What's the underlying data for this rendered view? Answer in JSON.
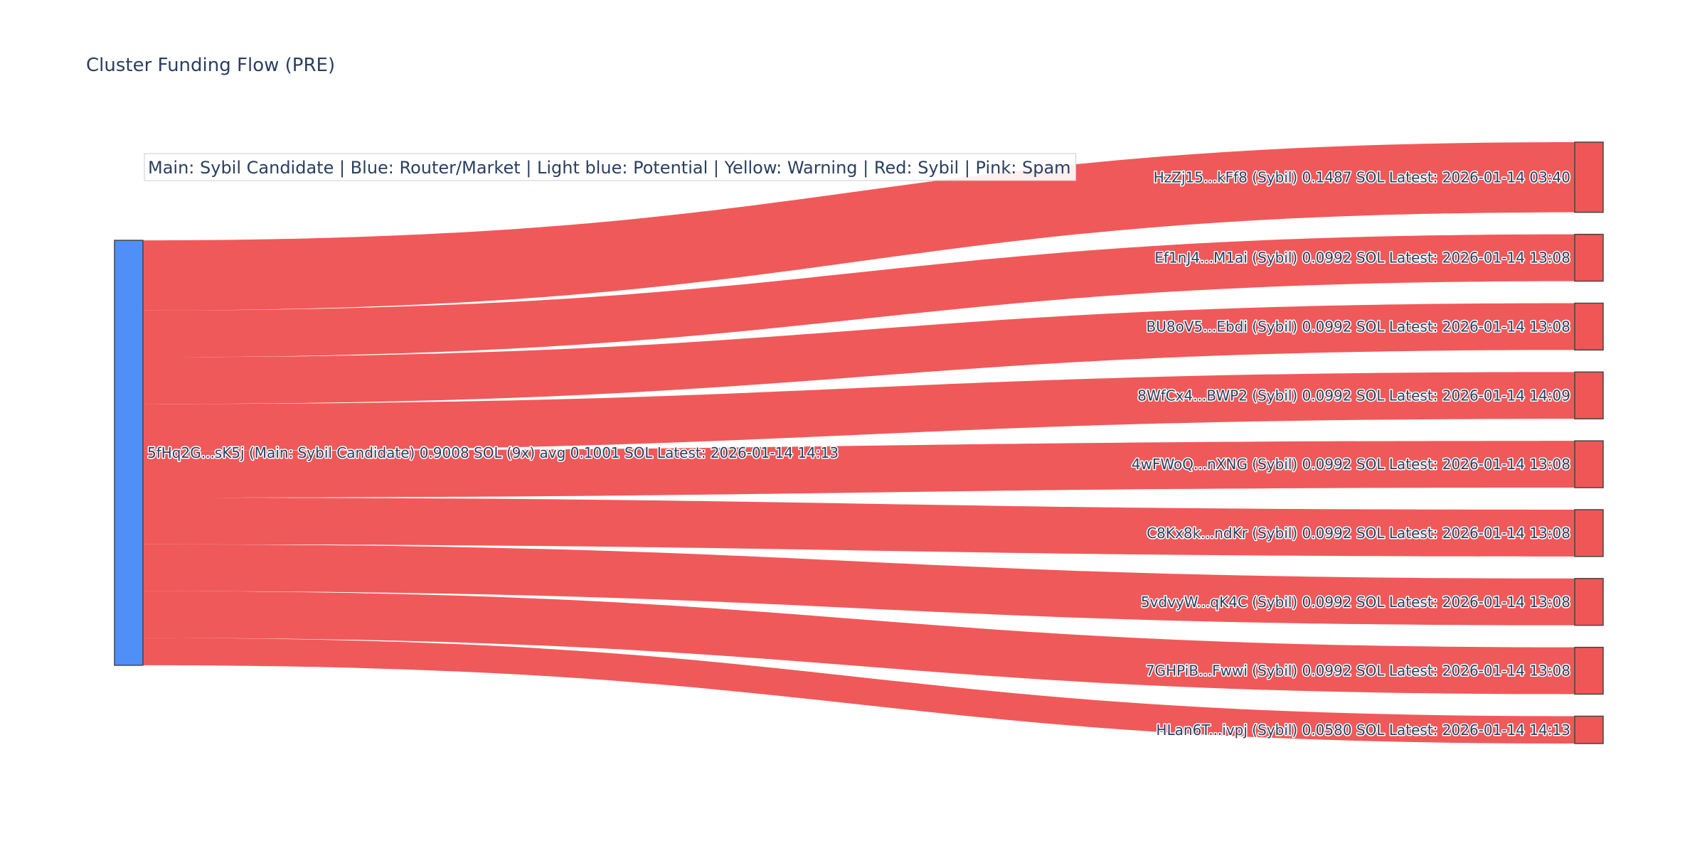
{
  "chart_data": {
    "type": "sankey",
    "title": "Cluster Funding Flow (PRE)",
    "legend_text": "Main: Sybil Candidate  |  Blue: Router/Market | Light blue: Potential | Yellow: Warning | Red: Sybil | Pink: Spam",
    "colors": {
      "source_node": "#4f8ff7",
      "target_node": "#f05656",
      "link": "#f05656",
      "text": "#2a3f5f"
    },
    "source": {
      "label": "5fHq2G...sK5j (Main: Sybil Candidate) 0.9008 SOL (9x) avg 0.1001 SOL Latest: 2026-01-14 14:13",
      "value": 0.9008
    },
    "targets": [
      {
        "label": "HzZj15...kFf8 (Sybil) 0.1487 SOL Latest: 2026-01-14 03:40",
        "value": 0.1487
      },
      {
        "label": "Ef1nJ4...M1ai (Sybil) 0.0992 SOL Latest: 2026-01-14 13:08",
        "value": 0.0992
      },
      {
        "label": "BU8oV5...Ebdi (Sybil) 0.0992 SOL Latest: 2026-01-14 13:08",
        "value": 0.0992
      },
      {
        "label": "8WfCx4...BWP2 (Sybil) 0.0992 SOL Latest: 2026-01-14 14:09",
        "value": 0.0992
      },
      {
        "label": "4wFWoQ...nXNG (Sybil) 0.0992 SOL Latest: 2026-01-14 13:08",
        "value": 0.0992
      },
      {
        "label": "C8Kx8k...ndKr (Sybil) 0.0992 SOL Latest: 2026-01-14 13:08",
        "value": 0.0992
      },
      {
        "label": "5vdvyW...qK4C (Sybil) 0.0992 SOL Latest: 2026-01-14 13:08",
        "value": 0.0992
      },
      {
        "label": "7GHPiB...Fwwi (Sybil) 0.0992 SOL Latest: 2026-01-14 13:08",
        "value": 0.0992
      },
      {
        "label": "HLan6T...ivpj (Sybil) 0.0580 SOL Latest: 2026-01-14 14:13",
        "value": 0.058
      }
    ]
  }
}
